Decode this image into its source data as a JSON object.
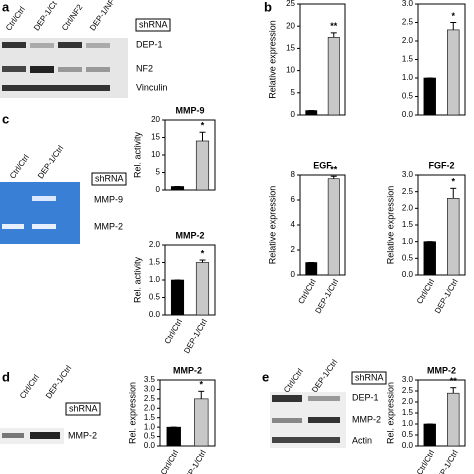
{
  "panels": [
    "a",
    "b",
    "c",
    "d",
    "e"
  ],
  "blots": {
    "a": {
      "lanes": [
        "Ctrl/Ctrl",
        "DEP-1/Ct",
        "Ctrl/NF2",
        "DEP-1/NF"
      ],
      "group": "shRNA",
      "rows": [
        "DEP-1",
        "NF2",
        "Vinculin"
      ]
    },
    "c": {
      "lanes": [
        "Ctrl/Ctrl",
        "DEP-1/Ctrl"
      ],
      "group": "shRNA",
      "rows": [
        "MMP-9",
        "MMP-2"
      ]
    },
    "d": {
      "lanes": [
        "Ctrl/Ctrl",
        "DEP-1/Ctrl"
      ],
      "group": "shRNA",
      "rows": [
        "MMP-2"
      ]
    },
    "e": {
      "lanes": [
        "Ctrl/Ctrl",
        "DEP-1/Ctrl"
      ],
      "group": "shRNA",
      "rows": [
        "DEP-1",
        "MMP-2",
        "Actin"
      ]
    }
  },
  "chart_data": [
    {
      "type": "bar",
      "ylabel": "Relative expression",
      "values": [
        1,
        17.5
      ],
      "errors": [
        0,
        1
      ],
      "significance": [
        null,
        "**"
      ],
      "colors": [
        "#000000",
        "#c8c8c8"
      ],
      "ylim": [
        0,
        25
      ],
      "yticks": [
        0,
        5,
        10,
        15,
        20,
        25
      ]
    },
    {
      "type": "bar",
      "values": [
        1,
        2.3
      ],
      "errors": [
        0,
        0.2
      ],
      "significance": [
        null,
        "*"
      ],
      "colors": [
        "#000000",
        "#c8c8c8"
      ],
      "ylim": [
        0,
        3
      ],
      "yticks": [
        {
          "value": 0,
          "label": "0.0"
        },
        {
          "value": 0.5,
          "label": "0.5"
        },
        {
          "value": 1,
          "label": "1.0"
        },
        {
          "value": 1.5,
          "label": "1.5"
        },
        {
          "value": 2,
          "label": "2.0"
        },
        {
          "value": 2.5,
          "label": "2.5"
        },
        {
          "value": 3,
          "label": "3.0"
        }
      ]
    },
    {
      "type": "bar",
      "title": "EGF",
      "ylabel": "Relative expression",
      "categories": [
        "Ctrl/Ctrl",
        "DEP-1/Ctrl"
      ],
      "values": [
        1,
        7.7
      ],
      "errors": [
        0,
        0.2
      ],
      "significance": [
        null,
        "**"
      ],
      "colors": [
        "#000000",
        "#c8c8c8"
      ],
      "ylim": [
        0,
        8
      ],
      "yticks": [
        0,
        2,
        4,
        6,
        8
      ]
    },
    {
      "type": "bar",
      "title": "FGF-2",
      "ylabel": "Relative expression",
      "categories": [
        "Ctrl/Ctrl",
        "DEP-1/Ctrl"
      ],
      "values": [
        1,
        2.3
      ],
      "errors": [
        0,
        0.3
      ],
      "significance": [
        null,
        "*"
      ],
      "colors": [
        "#000000",
        "#c8c8c8"
      ],
      "ylim": [
        0,
        3
      ],
      "yticks": [
        {
          "value": 0,
          "label": "0.0"
        },
        {
          "value": 0.5,
          "label": "0.5"
        },
        {
          "value": 1,
          "label": "1.0"
        },
        {
          "value": 1.5,
          "label": "1.5"
        },
        {
          "value": 2,
          "label": "2.0"
        },
        {
          "value": 2.5,
          "label": "2.5"
        },
        {
          "value": 3,
          "label": "3.0"
        }
      ]
    },
    {
      "type": "bar",
      "title": "MMP-9",
      "ylabel": "Rel. activity",
      "values": [
        1,
        14
      ],
      "errors": [
        0,
        2.5
      ],
      "significance": [
        null,
        "*"
      ],
      "colors": [
        "#000000",
        "#c8c8c8"
      ],
      "ylim": [
        0,
        20
      ],
      "yticks": [
        0,
        5,
        10,
        15,
        20
      ]
    },
    {
      "type": "bar",
      "title": "MMP-2",
      "ylabel": "Rel. activity",
      "categories": [
        "Ctrl/Ctrl",
        "DEP-1/Ctrl"
      ],
      "values": [
        1,
        1.5
      ],
      "errors": [
        0,
        0.07
      ],
      "significance": [
        null,
        "*"
      ],
      "colors": [
        "#000000",
        "#c8c8c8"
      ],
      "ylim": [
        0,
        2
      ],
      "yticks": [
        {
          "value": 0,
          "label": "0.0"
        },
        {
          "value": 0.5,
          "label": "0.5"
        },
        {
          "value": 1,
          "label": "1.0"
        },
        {
          "value": 1.5,
          "label": "1.5"
        },
        {
          "value": 2,
          "label": "2.0"
        }
      ]
    },
    {
      "type": "bar",
      "title": "MMP-2",
      "ylabel": "Rel. expression",
      "categories": [
        "Ctrl/Ctrl",
        "DEP-1/Ctrl"
      ],
      "values": [
        1,
        2.5
      ],
      "errors": [
        0,
        0.4
      ],
      "significance": [
        null,
        "*"
      ],
      "colors": [
        "#000000",
        "#c8c8c8"
      ],
      "ylim": [
        0,
        3.5
      ],
      "yticks": [
        {
          "value": 0,
          "label": "0.0"
        },
        {
          "value": 0.5,
          "label": "0.5"
        },
        {
          "value": 1,
          "label": "1.0"
        },
        {
          "value": 1.5,
          "label": "1.5"
        },
        {
          "value": 2,
          "label": "2.0"
        },
        {
          "value": 2.5,
          "label": "2.5"
        },
        {
          "value": 3,
          "label": "3.0"
        },
        {
          "value": 3.5,
          "label": "3.5"
        }
      ]
    },
    {
      "type": "bar",
      "title": "MMP-2",
      "ylabel": "Rel. expression",
      "categories": [
        "Ctrl/Ctrl",
        "DEP-1/Ctrl"
      ],
      "values": [
        1,
        2.4
      ],
      "errors": [
        0,
        0.25
      ],
      "significance": [
        null,
        "**"
      ],
      "colors": [
        "#000000",
        "#c8c8c8"
      ],
      "ylim": [
        0,
        3
      ],
      "yticks": [
        {
          "value": 0,
          "label": "0.0"
        },
        {
          "value": 0.5,
          "label": "0.5"
        },
        {
          "value": 1,
          "label": "1.0"
        },
        {
          "value": 1.5,
          "label": "1.5"
        },
        {
          "value": 2,
          "label": "2.0"
        },
        {
          "value": 2.5,
          "label": "2.5"
        },
        {
          "value": 3,
          "label": "3.0"
        }
      ]
    }
  ]
}
